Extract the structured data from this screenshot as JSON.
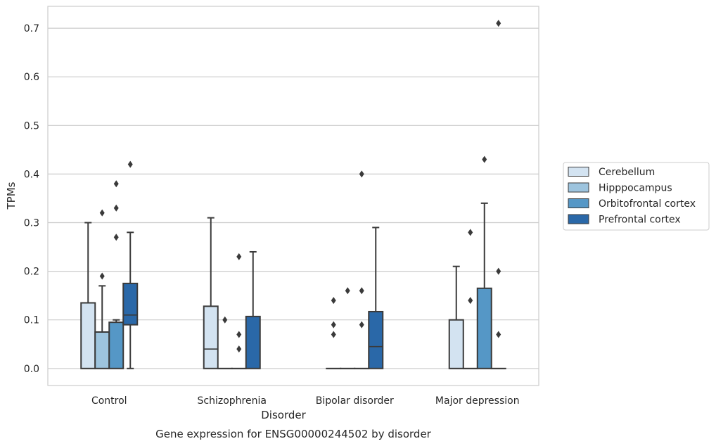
{
  "caption": "Gene expression for ENSG00000244502 by disorder",
  "chart_data": {
    "type": "box",
    "title": "",
    "xlabel": "Disorder",
    "ylabel": "TPMs",
    "ylim": [
      -0.035,
      0.745
    ],
    "yticks": [
      0.0,
      0.1,
      0.2,
      0.3,
      0.4,
      0.5,
      0.6,
      0.7
    ],
    "ytick_labels": [
      "0.0",
      "0.1",
      "0.2",
      "0.3",
      "0.4",
      "0.5",
      "0.6",
      "0.7"
    ],
    "grid": "horizontal",
    "legend_position": "right",
    "categories": [
      "Control",
      "Schizophrenia",
      "Bipolar disorder",
      "Major depression"
    ],
    "series": [
      {
        "name": "Cerebellum",
        "color": "#d3e3f1",
        "boxes": [
          {
            "q1": 0.0,
            "median": 0.0,
            "q3": 0.135,
            "whisker_low": 0.0,
            "whisker_high": 0.3,
            "outliers": []
          },
          {
            "q1": 0.0,
            "median": 0.04,
            "q3": 0.128,
            "whisker_low": 0.0,
            "whisker_high": 0.31,
            "outliers": []
          },
          {
            "q1": 0.0,
            "median": 0.0,
            "q3": 0.0,
            "whisker_low": 0.0,
            "whisker_high": 0.0,
            "outliers": [
              0.07,
              0.09,
              0.14
            ]
          },
          {
            "q1": 0.0,
            "median": 0.0,
            "q3": 0.1,
            "whisker_low": 0.0,
            "whisker_high": 0.21,
            "outliers": []
          }
        ]
      },
      {
        "name": "Hipppocampus",
        "color": "#9dc4de",
        "boxes": [
          {
            "q1": 0.0,
            "median": 0.0,
            "q3": 0.075,
            "whisker_low": 0.0,
            "whisker_high": 0.17,
            "outliers": [
              0.19,
              0.32
            ]
          },
          {
            "q1": 0.0,
            "median": 0.0,
            "q3": 0.0,
            "whisker_low": 0.0,
            "whisker_high": 0.0,
            "outliers": [
              0.1
            ]
          },
          {
            "q1": 0.0,
            "median": 0.0,
            "q3": 0.0,
            "whisker_low": 0.0,
            "whisker_high": 0.0,
            "outliers": [
              0.16
            ]
          },
          {
            "q1": 0.0,
            "median": 0.0,
            "q3": 0.0,
            "whisker_low": 0.0,
            "whisker_high": 0.0,
            "outliers": [
              0.14,
              0.28
            ]
          }
        ]
      },
      {
        "name": "Orbitofrontal cortex",
        "color": "#5597c6",
        "boxes": [
          {
            "q1": 0.0,
            "median": 0.0,
            "q3": 0.095,
            "whisker_low": 0.0,
            "whisker_high": 0.1,
            "outliers": [
              0.27,
              0.33,
              0.38
            ]
          },
          {
            "q1": 0.0,
            "median": 0.0,
            "q3": 0.0,
            "whisker_low": 0.0,
            "whisker_high": 0.0,
            "outliers": [
              0.04,
              0.07,
              0.23
            ]
          },
          {
            "q1": 0.0,
            "median": 0.0,
            "q3": 0.0,
            "whisker_low": 0.0,
            "whisker_high": 0.0,
            "outliers": [
              0.09,
              0.16,
              0.4
            ]
          },
          {
            "q1": 0.0,
            "median": 0.0,
            "q3": 0.165,
            "whisker_low": 0.0,
            "whisker_high": 0.34,
            "outliers": [
              0.43
            ]
          }
        ]
      },
      {
        "name": "Prefrontal cortex",
        "color": "#2a68a8",
        "boxes": [
          {
            "q1": 0.09,
            "median": 0.11,
            "q3": 0.175,
            "whisker_low": 0.0,
            "whisker_high": 0.28,
            "outliers": [
              0.42
            ]
          },
          {
            "q1": 0.0,
            "median": 0.0,
            "q3": 0.107,
            "whisker_low": 0.0,
            "whisker_high": 0.24,
            "outliers": []
          },
          {
            "q1": 0.0,
            "median": 0.045,
            "q3": 0.117,
            "whisker_low": 0.0,
            "whisker_high": 0.29,
            "outliers": []
          },
          {
            "q1": 0.0,
            "median": 0.0,
            "q3": 0.0,
            "whisker_low": 0.0,
            "whisker_high": 0.0,
            "outliers": [
              0.07,
              0.2,
              0.71
            ]
          }
        ]
      }
    ]
  }
}
